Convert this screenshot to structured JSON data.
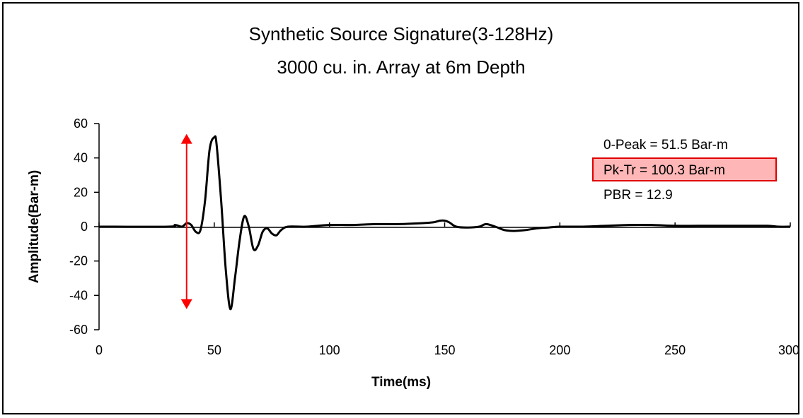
{
  "chart_data": {
    "type": "line",
    "title": "Synthetic Source Signature(3-128Hz)",
    "subtitle": "3000 cu. in. Array at 6m Depth",
    "xlabel": "Time(ms)",
    "ylabel": "Amplitude(Bar-m)",
    "xlim": [
      0,
      300
    ],
    "ylim": [
      -60,
      60
    ],
    "xticks": [
      0,
      50,
      100,
      150,
      200,
      250,
      300
    ],
    "yticks": [
      60,
      40,
      20,
      0,
      -20,
      -40,
      -60
    ],
    "grid": false,
    "legend": "none",
    "line_color": "#000000",
    "series": [
      {
        "x": [
          0,
          30,
          33,
          36,
          38,
          40,
          42,
          44,
          46,
          48,
          50,
          51,
          53,
          55,
          57,
          59,
          61,
          63,
          65,
          67,
          69,
          71,
          73,
          75,
          77,
          79,
          82,
          90,
          100,
          110,
          120,
          130,
          140,
          145,
          148,
          150,
          152,
          155,
          160,
          165,
          168,
          172,
          176,
          180,
          185,
          190,
          195,
          200,
          210,
          220,
          230,
          240,
          250,
          260,
          270,
          280,
          290,
          295,
          300
        ],
        "y": [
          0,
          0,
          1,
          0,
          2,
          1,
          -3,
          -2,
          15,
          45,
          52,
          48,
          15,
          -25,
          -48,
          -30,
          -8,
          6,
          0,
          -13,
          -11,
          -3,
          -1,
          -4,
          -5,
          -2,
          0,
          0,
          1,
          1,
          1.5,
          1.5,
          2,
          2.5,
          3.5,
          3.5,
          2.5,
          0,
          -0.5,
          0,
          1.5,
          0,
          -2,
          -2.5,
          -2,
          -1,
          -0.5,
          0,
          0,
          0.5,
          1,
          1,
          0.5,
          0.5,
          0.5,
          0.5,
          0.5,
          0,
          0
        ]
      }
    ],
    "annotations": {
      "zero_peak": "0-Peak = 51.5 Bar-m",
      "peak_trough": "Pk-Tr = 100.3 Bar-m",
      "pbr": "PBR = 12.9",
      "highlight_color": "#ffb6b6",
      "highlight_border_color": "#e00000",
      "arrow_color": "#ff0000",
      "arrow_x": 38,
      "arrow_y_top": 54,
      "arrow_y_bottom": -48
    }
  }
}
